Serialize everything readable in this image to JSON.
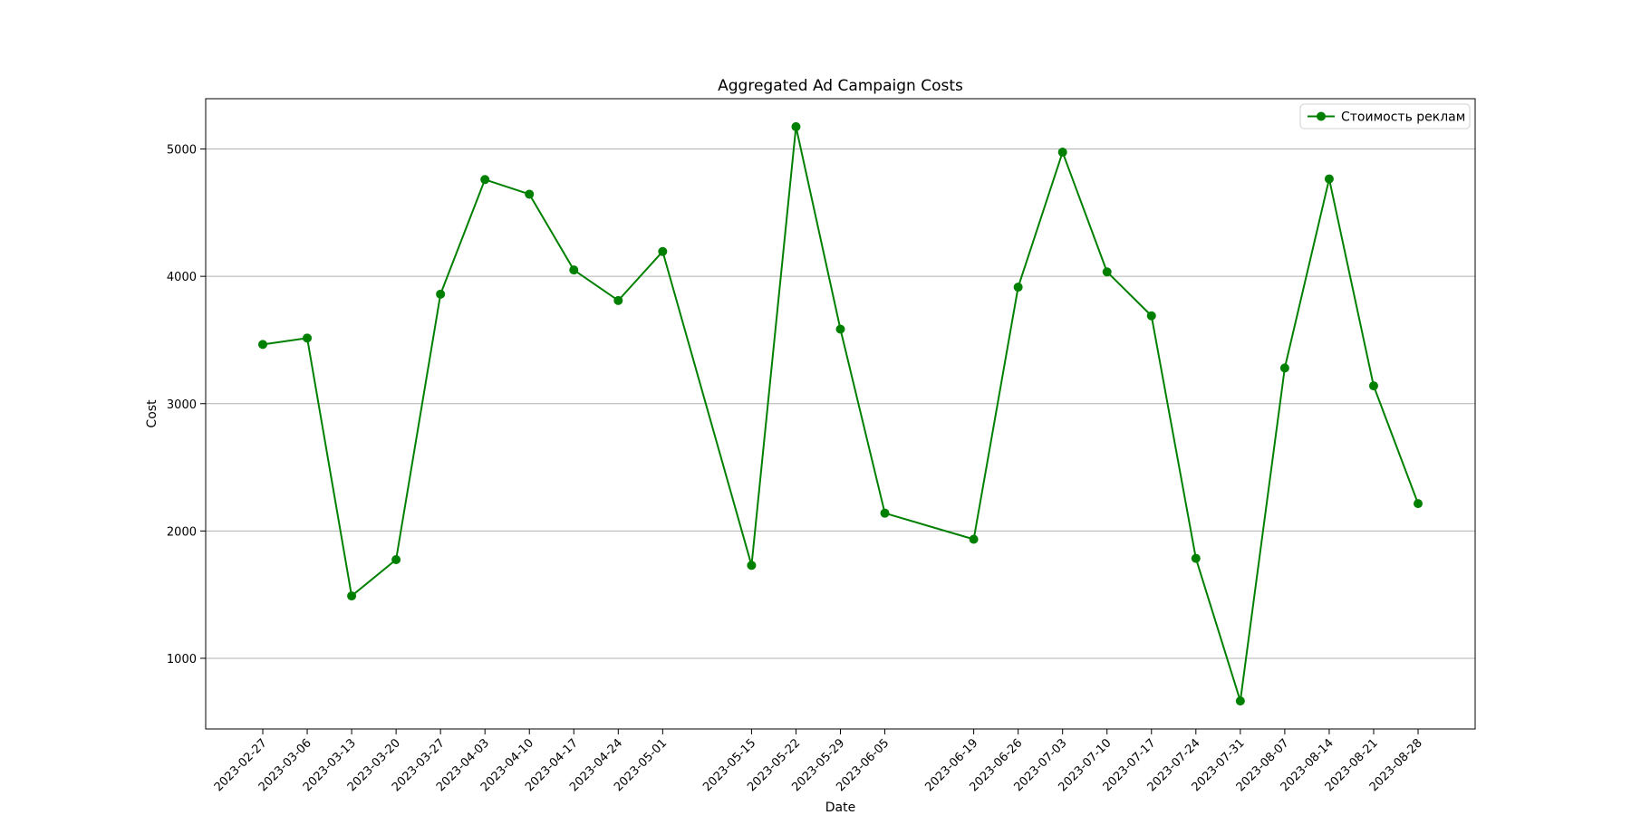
{
  "chart_data": {
    "type": "line",
    "title": "Aggregated Ad Campaign Costs",
    "xlabel": "Date",
    "ylabel": "Cost",
    "x": [
      "2023-02-27",
      "2023-03-06",
      "2023-03-13",
      "2023-03-20",
      "2023-03-27",
      "2023-04-03",
      "2023-04-10",
      "2023-04-17",
      "2023-04-24",
      "2023-05-01",
      "2023-05-15",
      "2023-05-22",
      "2023-05-29",
      "2023-06-05",
      "2023-06-19",
      "2023-06-26",
      "2023-07-03",
      "2023-07-10",
      "2023-07-17",
      "2023-07-24",
      "2023-07-31",
      "2023-08-07",
      "2023-08-14",
      "2023-08-21",
      "2023-08-28"
    ],
    "series": [
      {
        "name": "Стоимость реклам",
        "color": "#008000",
        "marker": "circle",
        "values": [
          3465,
          3515,
          1490,
          1775,
          3860,
          4760,
          4645,
          4050,
          3810,
          4195,
          1730,
          5175,
          3585,
          2140,
          1935,
          3915,
          4975,
          4035,
          3690,
          1785,
          665,
          3280,
          4765,
          3140,
          2215
        ]
      }
    ],
    "yticks": [
      1000,
      2000,
      3000,
      4000,
      5000
    ],
    "ylim": [
      445,
      5395
    ],
    "grid": "y-axis",
    "legend_position": "top-right"
  }
}
